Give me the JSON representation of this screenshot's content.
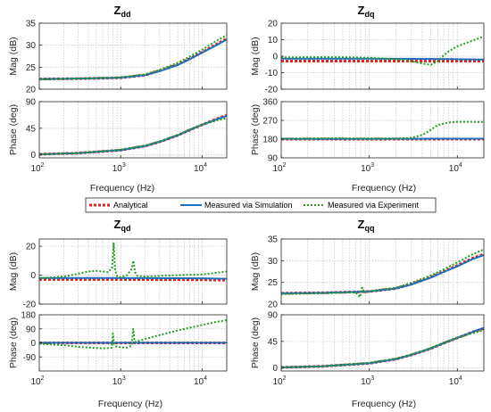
{
  "legend": [
    {
      "name": "Analytical",
      "color": "#e52222",
      "dash": "3,2",
      "width": 3
    },
    {
      "name": "Measured via Simulation",
      "color": "#1f6fbf",
      "dash": "",
      "width": 2
    },
    {
      "name": "Measured via Experiment",
      "color": "#22a022",
      "dash": "2,2",
      "width": 2
    }
  ],
  "chart_data": [
    {
      "type": "line",
      "title_main": "Z",
      "title_sub": "dd",
      "xlabel": "Frequency  (Hz)",
      "xscale": "log",
      "xlim": [
        100,
        20000
      ],
      "xticks": [
        100,
        1000,
        10000
      ],
      "xtick_labels": [
        "10",
        "10",
        "10"
      ],
      "xtick_exps": [
        "2",
        "3",
        "4"
      ],
      "grid": true,
      "mag": {
        "ylabel": "Mag (dB)",
        "ylim": [
          20,
          35
        ],
        "yticks": [
          20,
          25,
          30,
          35
        ],
        "series": [
          {
            "name": "Analytical",
            "x": [
              100,
              300,
              1000,
              2000,
              3000,
              5000,
              7000,
              10000,
              15000,
              20000
            ],
            "y": [
              22.3,
              22.4,
              22.6,
              23.2,
              24.2,
              25.6,
              26.9,
              28.4,
              30.2,
              31.5
            ]
          },
          {
            "name": "Measured via Simulation",
            "x": [
              100,
              300,
              1000,
              2000,
              3000,
              5000,
              7000,
              10000,
              15000,
              20000
            ],
            "y": [
              22.3,
              22.4,
              22.6,
              23.2,
              24.1,
              25.5,
              26.8,
              28.3,
              30.0,
              31.3
            ]
          },
          {
            "name": "Measured via Experiment",
            "x": [
              100,
              300,
              1000,
              2000,
              3000,
              5000,
              7000,
              10000,
              15000,
              20000
            ],
            "y": [
              22.2,
              22.4,
              22.7,
              23.4,
              24.4,
              26.0,
              27.4,
              29.0,
              31.0,
              32.3
            ]
          }
        ]
      },
      "phase": {
        "ylabel": "Phase (deg)",
        "ylim": [
          -5,
          90
        ],
        "yticks": [
          0,
          45,
          90
        ],
        "series": [
          {
            "name": "Analytical",
            "x": [
              100,
              300,
              1000,
              2000,
              3000,
              5000,
              7000,
              10000,
              15000,
              20000
            ],
            "y": [
              1,
              3,
              8,
              15,
              22,
              33,
              42,
              51,
              61,
              67
            ]
          },
          {
            "name": "Measured via Simulation",
            "x": [
              100,
              300,
              1000,
              2000,
              3000,
              5000,
              7000,
              10000,
              15000,
              20000
            ],
            "y": [
              1,
              3,
              8,
              15,
              22,
              33,
              42,
              51,
              60,
              66
            ]
          },
          {
            "name": "Measured via Experiment",
            "x": [
              100,
              300,
              1000,
              2000,
              3000,
              5000,
              7000,
              10000,
              15000,
              20000
            ],
            "y": [
              1,
              3,
              9,
              16,
              23,
              34,
              43,
              51,
              58,
              62
            ]
          }
        ]
      }
    },
    {
      "type": "line",
      "title_main": "Z",
      "title_sub": "dq",
      "xlabel": "Frequency  (Hz)",
      "xscale": "log",
      "xlim": [
        100,
        20000
      ],
      "xticks": [
        100,
        1000,
        10000
      ],
      "xtick_labels": [
        "10",
        "10",
        "10"
      ],
      "xtick_exps": [
        "2",
        "3",
        "4"
      ],
      "grid": true,
      "mag": {
        "ylabel": "Mag (dB)",
        "ylim": [
          -20,
          20
        ],
        "yticks": [
          -20,
          -10,
          0,
          10,
          20
        ],
        "series": [
          {
            "name": "Analytical",
            "x": [
              100,
              1000,
              10000,
              20000
            ],
            "y": [
              -3,
              -3,
              -3,
              -3
            ]
          },
          {
            "name": "Measured via Simulation",
            "x": [
              100,
              1000,
              3000,
              10000,
              20000
            ],
            "y": [
              -1.5,
              -1.5,
              -1.6,
              -1.8,
              -2
            ]
          },
          {
            "name": "Measured via Experiment",
            "x": [
              100,
              300,
              700,
              1000,
              2000,
              3000,
              4000,
              5000,
              6000,
              7000,
              8000,
              10000,
              15000,
              20000
            ],
            "y": [
              -0.8,
              -0.6,
              -0.8,
              -1.0,
              -1.8,
              -3.0,
              -4.5,
              -5.2,
              -3.0,
              0.5,
              3.0,
              6.0,
              9.5,
              12
            ]
          }
        ]
      },
      "phase": {
        "ylabel": "Phase (deg)",
        "ylim": [
          90,
          360
        ],
        "yticks": [
          90,
          180,
          270,
          360
        ],
        "series": [
          {
            "name": "Analytical",
            "x": [
              100,
              1000,
              10000,
              20000
            ],
            "y": [
              180,
              180,
              180,
              180
            ]
          },
          {
            "name": "Measured via Simulation",
            "x": [
              100,
              1000,
              10000,
              20000
            ],
            "y": [
              181,
              181,
              182,
              182
            ]
          },
          {
            "name": "Measured via Experiment",
            "x": [
              100,
              300,
              1000,
              2000,
              3000,
              4000,
              5000,
              6000,
              8000,
              10000,
              15000,
              20000
            ],
            "y": [
              182,
              184,
              183,
              183,
              186,
              200,
              225,
              248,
              260,
              263,
              263,
              262
            ]
          }
        ]
      }
    },
    {
      "type": "line",
      "title_main": "Z",
      "title_sub": "qd",
      "xlabel": "Frequency  (Hz)",
      "xscale": "log",
      "xlim": [
        100,
        20000
      ],
      "xticks": [
        100,
        1000,
        10000
      ],
      "xtick_labels": [
        "10",
        "10",
        "10"
      ],
      "xtick_exps": [
        "2",
        "3",
        "4"
      ],
      "grid": true,
      "mag": {
        "ylabel": "Mag (dB)",
        "ylim": [
          -20,
          25
        ],
        "yticks": [
          -20,
          0,
          20
        ],
        "series": [
          {
            "name": "Analytical",
            "x": [
              100,
              1000,
              10000,
              20000
            ],
            "y": [
              -3,
              -3,
              -3.2,
              -3.5
            ]
          },
          {
            "name": "Measured via Simulation",
            "x": [
              100,
              1000,
              10000,
              20000
            ],
            "y": [
              -2,
              -2,
              -2.2,
              -2.5
            ]
          },
          {
            "name": "Measured via Experiment",
            "x": [
              100,
              200,
              300,
              400,
              500,
              600,
              700,
              780,
              820,
              850,
              880,
              920,
              1000,
              1200,
              1350,
              1430,
              1500,
              1600,
              2000,
              3000,
              5000,
              10000,
              20000
            ],
            "y": [
              -2,
              -1,
              1,
              2.5,
              3,
              2.5,
              2,
              5,
              22,
              5,
              0,
              -1,
              -1.5,
              0,
              4,
              10,
              2,
              -0.5,
              -1,
              -0.5,
              0,
              0.5,
              2.5
            ]
          }
        ]
      },
      "phase": {
        "ylabel": "Phase (deg)",
        "ylim": [
          -180,
          180
        ],
        "yticks": [
          -90,
          0,
          90,
          180
        ],
        "series": [
          {
            "name": "Analytical",
            "x": [
              100,
              1000,
              10000,
              20000
            ],
            "y": [
              0,
              0,
              0,
              0
            ]
          },
          {
            "name": "Measured via Simulation",
            "x": [
              100,
              1000,
              10000,
              20000
            ],
            "y": [
              1,
              1,
              1,
              1
            ]
          },
          {
            "name": "Measured via Experiment",
            "x": [
              100,
              200,
              300,
              400,
              500,
              600,
              700,
              780,
              800,
              830,
              860,
              900,
              1000,
              1200,
              1350,
              1420,
              1480,
              1550,
              1700,
              2000,
              3000,
              5000,
              10000,
              15000,
              20000
            ],
            "y": [
              -5,
              -15,
              -25,
              -30,
              -33,
              -35,
              -33,
              -30,
              60,
              -5,
              -20,
              -25,
              -28,
              -30,
              -20,
              90,
              10,
              5,
              15,
              25,
              50,
              80,
              115,
              135,
              145
            ]
          }
        ]
      }
    },
    {
      "type": "line",
      "title_main": "Z",
      "title_sub": "qq",
      "xlabel": "Frequency  (Hz)",
      "xscale": "log",
      "xlim": [
        100,
        20000
      ],
      "xticks": [
        100,
        1000,
        10000
      ],
      "xtick_labels": [
        "10",
        "10",
        "10"
      ],
      "xtick_exps": [
        "2",
        "3",
        "4"
      ],
      "grid": true,
      "mag": {
        "ylabel": "Mag (dB)",
        "ylim": [
          20,
          35
        ],
        "yticks": [
          20,
          25,
          30,
          35
        ],
        "series": [
          {
            "name": "Analytical",
            "x": [
              100,
              300,
              1000,
              2000,
              3000,
              5000,
              7000,
              10000,
              15000,
              20000
            ],
            "y": [
              22.5,
              22.6,
              22.9,
              23.6,
              24.6,
              26.2,
              27.5,
              28.9,
              30.6,
              31.5
            ]
          },
          {
            "name": "Measured via Simulation",
            "x": [
              100,
              300,
              1000,
              2000,
              3000,
              5000,
              7000,
              10000,
              15000,
              20000
            ],
            "y": [
              22.5,
              22.6,
              22.9,
              23.6,
              24.5,
              26.1,
              27.4,
              28.7,
              30.4,
              31.3
            ]
          },
          {
            "name": "Measured via Experiment",
            "x": [
              100,
              300,
              700,
              780,
              830,
              880,
              1000,
              2000,
              3000,
              5000,
              7000,
              10000,
              15000,
              20000
            ],
            "y": [
              22.3,
              22.5,
              22.7,
              21.6,
              23.8,
              22.6,
              23.0,
              23.8,
              24.9,
              26.6,
              28.0,
              29.6,
              31.5,
              32.6
            ]
          }
        ]
      },
      "phase": {
        "ylabel": "Phase (deg)",
        "ylim": [
          -5,
          90
        ],
        "yticks": [
          0,
          45,
          90
        ],
        "series": [
          {
            "name": "Analytical",
            "x": [
              100,
              300,
              1000,
              2000,
              3000,
              5000,
              7000,
              10000,
              15000,
              20000
            ],
            "y": [
              1,
              3,
              8,
              15,
              22,
              33,
              42,
              51,
              61,
              67
            ]
          },
          {
            "name": "Measured via Simulation",
            "x": [
              100,
              300,
              1000,
              2000,
              3000,
              5000,
              7000,
              10000,
              15000,
              20000
            ],
            "y": [
              1,
              3,
              8,
              15,
              22,
              33,
              42,
              51,
              61,
              68
            ]
          },
          {
            "name": "Measured via Experiment",
            "x": [
              100,
              300,
              1000,
              2000,
              3000,
              5000,
              7000,
              10000,
              15000,
              20000
            ],
            "y": [
              1,
              3,
              9,
              16,
              23,
              34,
              43,
              51,
              59,
              64
            ]
          }
        ]
      }
    }
  ]
}
